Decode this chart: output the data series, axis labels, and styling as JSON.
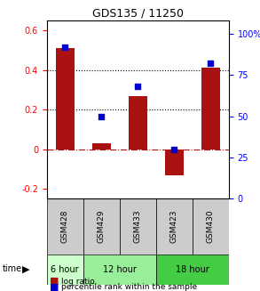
{
  "title": "GDS135 / 11250",
  "samples": [
    "GSM428",
    "GSM429",
    "GSM433",
    "GSM423",
    "GSM430"
  ],
  "log_ratio": [
    0.51,
    0.03,
    0.27,
    -0.13,
    0.41
  ],
  "percentile_rank": [
    92,
    50,
    68,
    30,
    82
  ],
  "time_groups": [
    {
      "label": "6 hour",
      "samples": [
        "GSM428"
      ],
      "color": "#ccffcc"
    },
    {
      "label": "12 hour",
      "samples": [
        "GSM429",
        "GSM433"
      ],
      "color": "#99ee99"
    },
    {
      "label": "18 hour",
      "samples": [
        "GSM423",
        "GSM430"
      ],
      "color": "#44cc44"
    }
  ],
  "bar_color": "#aa1111",
  "dot_color": "#0000cc",
  "ylim_left": [
    -0.25,
    0.65
  ],
  "ylim_right": [
    0,
    108
  ],
  "yticks_left": [
    -0.2,
    0.0,
    0.2,
    0.4,
    0.6
  ],
  "yticks_right": [
    0,
    25,
    50,
    75,
    100
  ],
  "ytick_labels_left": [
    "-0.2",
    "0",
    "0.2",
    "0.4",
    "0.6"
  ],
  "ytick_labels_right": [
    "0",
    "25",
    "50",
    "75",
    "100%"
  ],
  "hlines": [
    0.2,
    0.4
  ],
  "zero_line": 0.0,
  "bar_width": 0.5,
  "header_color": "#cccccc",
  "time_label": "time",
  "legend_log": "log ratio",
  "legend_pct": "percentile rank within the sample"
}
